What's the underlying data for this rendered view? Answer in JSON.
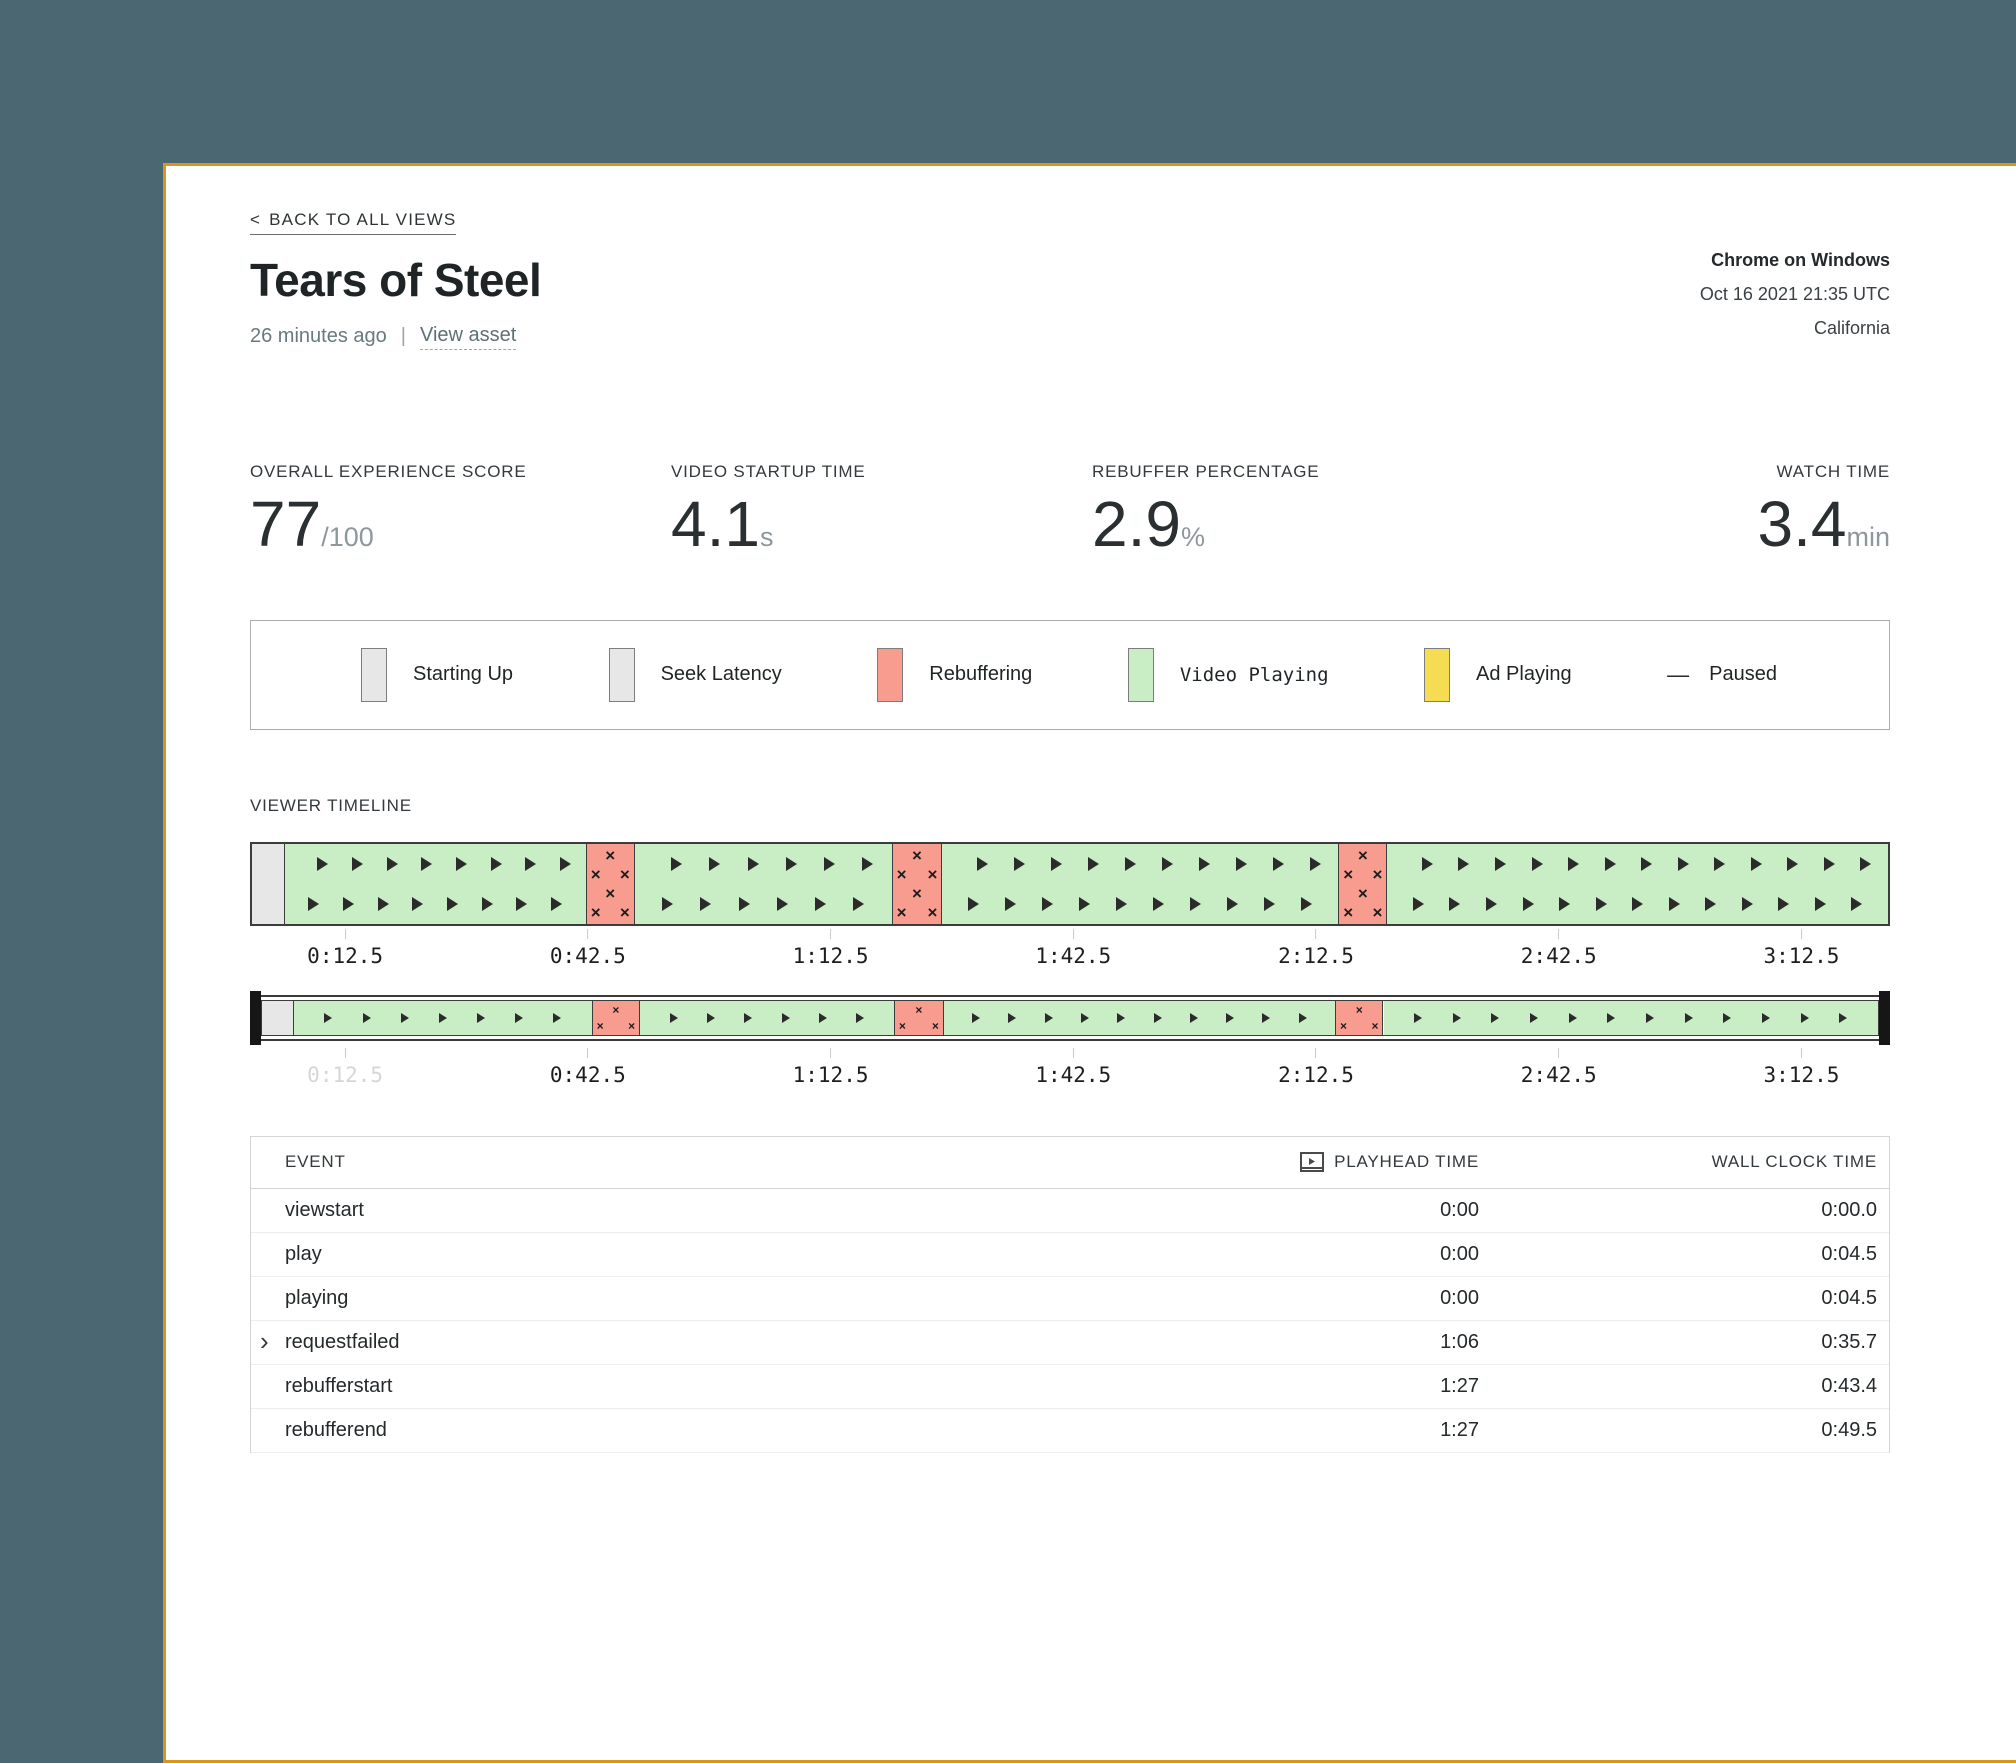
{
  "header": {
    "back_chevron": "<",
    "back_label": "BACK TO ALL VIEWS",
    "title": "Tears of Steel",
    "time_ago": "26 minutes ago",
    "separator": "|",
    "view_asset_label": "View asset",
    "meta": {
      "browser_os": "Chrome on Windows",
      "datetime": "Oct 16 2021 21:35 UTC",
      "location": "California"
    }
  },
  "metrics": [
    {
      "label": "OVERALL EXPERIENCE SCORE",
      "value": "77",
      "unit": "/100"
    },
    {
      "label": "VIDEO STARTUP TIME",
      "value": "4.1",
      "unit": "s"
    },
    {
      "label": "REBUFFER PERCENTAGE",
      "value": "2.9",
      "unit": "%"
    },
    {
      "label": "WATCH TIME",
      "value": "3.4",
      "unit": "min"
    }
  ],
  "colors": {
    "background_teal": "#4b6872",
    "card_border_gold": "#d8961d",
    "startup_gray": "#e7e7e7",
    "seek_gray": "#e7e7e7",
    "rebuffering_red": "#f79c8e",
    "playing_green": "#c9edc5",
    "ad_yellow": "#f6dc52"
  },
  "legend": {
    "items": [
      {
        "type": "swatch",
        "label": "Starting Up",
        "color_key": "startup_gray",
        "mono": false
      },
      {
        "type": "swatch",
        "label": "Seek Latency",
        "color_key": "seek_gray",
        "mono": false
      },
      {
        "type": "swatch",
        "label": "Rebuffering",
        "color_key": "rebuffering_red",
        "mono": false
      },
      {
        "type": "swatch",
        "label": "Video Playing",
        "color_key": "playing_green",
        "mono": true
      },
      {
        "type": "swatch",
        "label": "Ad Playing",
        "color_key": "ad_yellow",
        "mono": false
      },
      {
        "type": "dash",
        "label": "Paused",
        "dash_glyph": "—",
        "mono": false
      }
    ]
  },
  "timeline": {
    "section_label": "VIEWER TIMELINE",
    "segments": [
      {
        "type": "startup",
        "start": 0,
        "end": 2.0
      },
      {
        "type": "playing",
        "start": 2.0,
        "end": 20.4
      },
      {
        "type": "rebuffering",
        "start": 20.4,
        "end": 23.4
      },
      {
        "type": "playing",
        "start": 23.4,
        "end": 39.1
      },
      {
        "type": "rebuffering",
        "start": 39.1,
        "end": 42.2
      },
      {
        "type": "playing",
        "start": 42.2,
        "end": 66.4
      },
      {
        "type": "rebuffering",
        "start": 66.4,
        "end": 69.4
      },
      {
        "type": "playing",
        "start": 69.4,
        "end": 100
      }
    ],
    "ticks": [
      {
        "pos": 5.8,
        "label": "0:12.5"
      },
      {
        "pos": 20.6,
        "label": "0:42.5"
      },
      {
        "pos": 35.4,
        "label": "1:12.5"
      },
      {
        "pos": 50.2,
        "label": "1:42.5"
      },
      {
        "pos": 65.0,
        "label": "2:12.5"
      },
      {
        "pos": 79.8,
        "label": "2:42.5"
      },
      {
        "pos": 94.6,
        "label": "3:12.5"
      }
    ],
    "scrubber_ticks": [
      {
        "pos": 5.8,
        "label": "0:12.5",
        "faded": true
      },
      {
        "pos": 20.6,
        "label": "0:42.5"
      },
      {
        "pos": 35.4,
        "label": "1:12.5"
      },
      {
        "pos": 50.2,
        "label": "1:42.5"
      },
      {
        "pos": 65.0,
        "label": "2:12.5"
      },
      {
        "pos": 79.8,
        "label": "2:42.5"
      },
      {
        "pos": 94.6,
        "label": "3:12.5"
      }
    ]
  },
  "events": {
    "headers": {
      "event": "EVENT",
      "playhead": "PLAYHEAD TIME",
      "wall_clock": "WALL CLOCK TIME"
    },
    "rows": [
      {
        "event": "viewstart",
        "playhead": "0:00",
        "wall_clock": "0:00.0",
        "expandable": false
      },
      {
        "event": "play",
        "playhead": "0:00",
        "wall_clock": "0:04.5",
        "expandable": false
      },
      {
        "event": "playing",
        "playhead": "0:00",
        "wall_clock": "0:04.5",
        "expandable": false
      },
      {
        "event": "requestfailed",
        "playhead": "1:06",
        "wall_clock": "0:35.7",
        "expandable": true,
        "chevron": "›"
      },
      {
        "event": "rebufferstart",
        "playhead": "1:27",
        "wall_clock": "0:43.4",
        "expandable": false
      },
      {
        "event": "rebufferend",
        "playhead": "1:27",
        "wall_clock": "0:49.5",
        "expandable": false
      }
    ]
  }
}
